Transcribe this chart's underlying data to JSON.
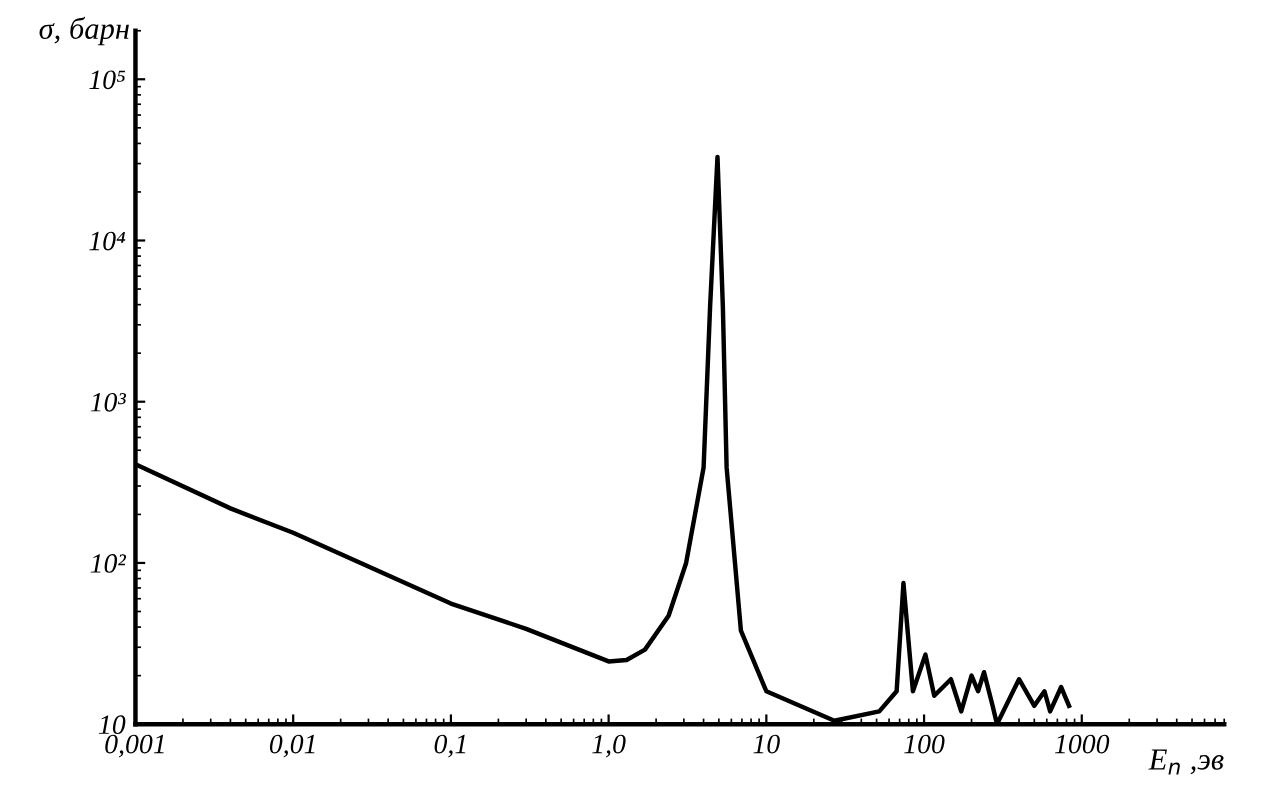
{
  "chart_data": {
    "type": "line",
    "xlabel": "E$_{n}$ ,эв",
    "ylabel": "σ, барн",
    "log": "xy",
    "grid": false,
    "marker": "none",
    "line_style": "solid",
    "xlim": [
      0.001,
      8000
    ],
    "ylim": [
      10,
      200000
    ],
    "xticks": [
      {
        "value": 0.001,
        "label": "0,001"
      },
      {
        "value": 0.01,
        "label": "0,01"
      },
      {
        "value": 0.1,
        "label": "0,1"
      },
      {
        "value": 1,
        "label": "1,0"
      },
      10,
      100,
      1000
    ],
    "yticks": [
      10,
      {
        "value": 100,
        "label": "10²"
      },
      {
        "value": 1000,
        "label": "10³"
      },
      {
        "value": 10000,
        "label": "10⁴"
      },
      {
        "value": 100000,
        "label": "10⁵"
      }
    ],
    "series": [
      {
        "color": "#000000",
        "x": [
          0.001,
          0.004,
          0.01,
          0.1,
          0.3,
          1.0,
          1.3,
          1.7,
          2.4,
          3.1,
          4.0,
          4.4,
          4.9,
          5.3,
          5.6,
          6.9,
          10,
          27,
          52,
          67,
          74,
          85,
          102,
          116,
          148,
          172,
          200,
          220,
          240,
          272,
          290,
          400,
          500,
          580,
          630,
          740,
          830
        ],
        "values": [
          410,
          218,
          154,
          56,
          39,
          24.5,
          25,
          29,
          47,
          100,
          390,
          3900,
          33000,
          3900,
          390,
          38,
          16,
          10.5,
          12,
          16,
          75,
          16,
          27,
          15,
          19,
          12,
          20,
          16,
          21,
          13,
          10,
          19,
          13,
          16,
          12,
          17,
          13
        ]
      }
    ]
  }
}
